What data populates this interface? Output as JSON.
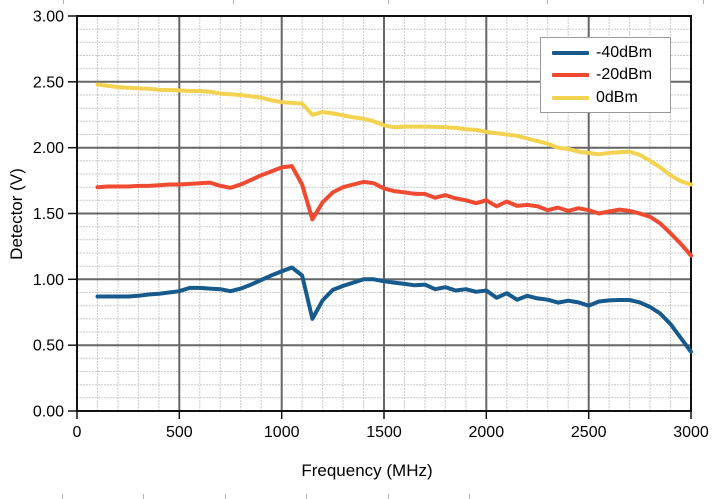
{
  "chart_data": {
    "type": "line",
    "title": "",
    "xlabel": "Frequency (MHz)",
    "ylabel": "Detector (V)",
    "xlim": [
      0,
      3000
    ],
    "ylim": [
      0.0,
      3.0
    ],
    "x_major_step": 500,
    "x_minor_step": 100,
    "y_major_step": 0.5,
    "y_minor_step": 0.1,
    "grid": "major+minor",
    "legend_position": "top-right-inside",
    "x_tick_labels": [
      "0",
      "500",
      "1000",
      "1500",
      "2000",
      "2500",
      "3000"
    ],
    "y_tick_labels": [
      "3.00",
      "2.50",
      "2.00",
      "1.50",
      "1.00",
      "0.50",
      "0.00"
    ],
    "colors": {
      "grid_minor": "#cbcbcb",
      "grid_major": "#666666",
      "frame": "#111111",
      "tick": "#111111"
    },
    "x": [
      100,
      150,
      200,
      250,
      300,
      350,
      400,
      450,
      500,
      550,
      600,
      650,
      700,
      750,
      800,
      850,
      900,
      950,
      1000,
      1050,
      1100,
      1150,
      1200,
      1250,
      1300,
      1350,
      1400,
      1450,
      1500,
      1550,
      1600,
      1650,
      1700,
      1750,
      1800,
      1850,
      1900,
      1950,
      2000,
      2050,
      2100,
      2150,
      2200,
      2250,
      2300,
      2350,
      2400,
      2450,
      2500,
      2550,
      2600,
      2650,
      2700,
      2750,
      2800,
      2850,
      2900,
      2950,
      3000
    ],
    "series": [
      {
        "name": "-40dBm",
        "color": "#175A8C",
        "values": [
          0.87,
          0.87,
          0.87,
          0.87,
          0.875,
          0.885,
          0.89,
          0.9,
          0.91,
          0.935,
          0.935,
          0.93,
          0.925,
          0.91,
          0.93,
          0.96,
          0.995,
          1.03,
          1.06,
          1.09,
          1.03,
          0.7,
          0.84,
          0.92,
          0.95,
          0.975,
          1.0,
          1.0,
          0.985,
          0.975,
          0.965,
          0.955,
          0.96,
          0.925,
          0.94,
          0.915,
          0.925,
          0.905,
          0.915,
          0.86,
          0.895,
          0.845,
          0.875,
          0.855,
          0.845,
          0.823,
          0.838,
          0.825,
          0.8,
          0.832,
          0.84,
          0.843,
          0.843,
          0.825,
          0.79,
          0.74,
          0.66,
          0.555,
          0.45
        ]
      },
      {
        "name": "-20dBm",
        "color": "#F04B32",
        "values": [
          1.7,
          1.705,
          1.705,
          1.705,
          1.71,
          1.71,
          1.715,
          1.72,
          1.72,
          1.725,
          1.73,
          1.735,
          1.71,
          1.695,
          1.72,
          1.755,
          1.79,
          1.82,
          1.85,
          1.86,
          1.72,
          1.455,
          1.585,
          1.66,
          1.7,
          1.72,
          1.74,
          1.73,
          1.69,
          1.67,
          1.66,
          1.65,
          1.648,
          1.62,
          1.64,
          1.615,
          1.6,
          1.578,
          1.6,
          1.555,
          1.59,
          1.558,
          1.565,
          1.555,
          1.525,
          1.545,
          1.52,
          1.54,
          1.525,
          1.5,
          1.515,
          1.53,
          1.52,
          1.5,
          1.475,
          1.425,
          1.35,
          1.27,
          1.18
        ]
      },
      {
        "name": "0dBm",
        "color": "#F3D24F",
        "values": [
          2.48,
          2.47,
          2.46,
          2.455,
          2.45,
          2.448,
          2.44,
          2.438,
          2.435,
          2.43,
          2.43,
          2.425,
          2.41,
          2.405,
          2.4,
          2.39,
          2.38,
          2.36,
          2.345,
          2.34,
          2.335,
          2.25,
          2.27,
          2.26,
          2.245,
          2.23,
          2.22,
          2.2,
          2.17,
          2.155,
          2.16,
          2.16,
          2.16,
          2.158,
          2.155,
          2.15,
          2.14,
          2.135,
          2.12,
          2.11,
          2.1,
          2.09,
          2.07,
          2.05,
          2.03,
          2.0,
          1.99,
          1.97,
          1.96,
          1.95,
          1.96,
          1.965,
          1.97,
          1.945,
          1.9,
          1.85,
          1.79,
          1.745,
          1.72
        ]
      }
    ]
  }
}
